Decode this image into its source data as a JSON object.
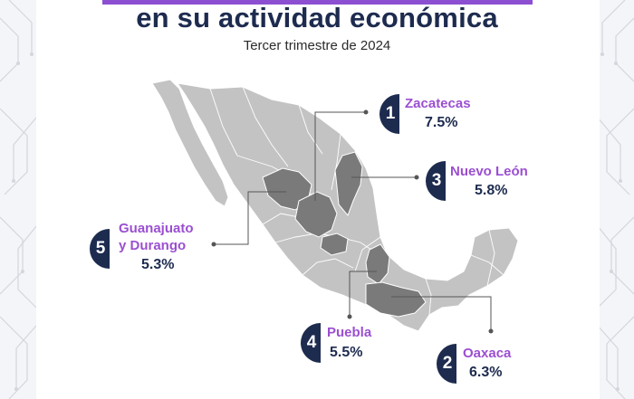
{
  "header": {
    "title": "en su actividad económica",
    "subtitle": "Tercer trimestre de 2024"
  },
  "colors": {
    "accent": "#8c4fd1",
    "label_purple": "#9b4fd1",
    "navy": "#1d2b4f",
    "map_base": "#c3c3c3",
    "map_highlight": "#7a7a7a"
  },
  "rankings": [
    {
      "rank": "1",
      "state": "Zacatecas",
      "value": "7.5%"
    },
    {
      "rank": "2",
      "state": "Oaxaca",
      "value": "6.3%"
    },
    {
      "rank": "3",
      "state": "Nuevo León",
      "value": "5.8%"
    },
    {
      "rank": "4",
      "state": "Puebla",
      "value": "5.5%"
    },
    {
      "rank": "5",
      "state_line1": "Guanajuato",
      "state_line2": "y Durango",
      "value": "5.3%"
    }
  ]
}
